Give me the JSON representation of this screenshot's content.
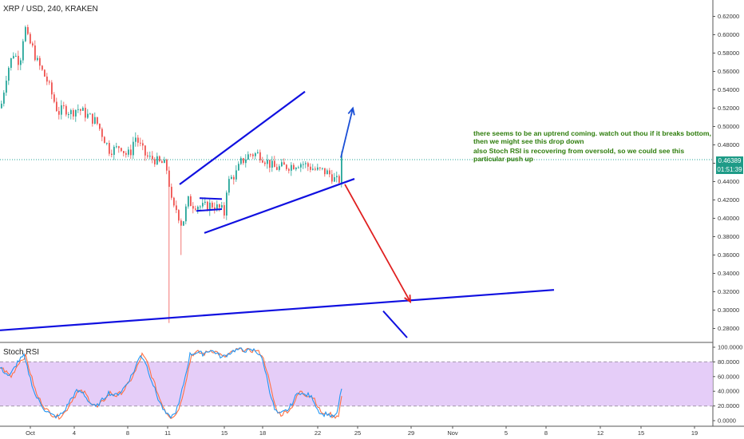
{
  "header": {
    "symbol_title": "XRP / USD, 240, KRAKEN"
  },
  "indicator": {
    "name": "Stoch RSI"
  },
  "last_price": {
    "value": "0.46389",
    "countdown": "01:51:39",
    "color": "#1e9b87"
  },
  "annotations": {
    "note_1": "there seems to be an uptrend coming. watch out thou if it breaks bottom, then we might see this drop down",
    "note_2": "also Stoch RSI is recovering from oversold, so we could see this particular push up"
  },
  "colors": {
    "up": "#26a69a",
    "down": "#ef5350",
    "trendline": "#1010e0",
    "up_arrow": "#1a4fd6",
    "down_arrow": "#e02020",
    "stoch_k": "#2196f3",
    "stoch_d": "#ff7043",
    "stoch_band": "#e1c4f7"
  },
  "chart_data": {
    "type": "candlestick",
    "price_axis": {
      "min": 0.27,
      "max": 0.63,
      "ticks": [
        "0.62000",
        "0.60000",
        "0.58000",
        "0.56000",
        "0.54000",
        "0.52000",
        "0.50000",
        "0.48000",
        "0.46000",
        "0.44000",
        "0.42000",
        "0.40000",
        "0.38000",
        "0.36000",
        "0.34000",
        "0.32000",
        "0.30000",
        "0.28000"
      ]
    },
    "time_axis": {
      "labels": [
        "Oct",
        "4",
        "8",
        "11",
        "15",
        "18",
        "22",
        "25",
        "29",
        "Nov",
        "5",
        "8",
        "12",
        "15",
        "19"
      ]
    },
    "stoch_axis": {
      "min": 0,
      "max": 100,
      "ticks": [
        "100.0000",
        "80.0000",
        "60.0000",
        "40.0000",
        "20.0000",
        "0.0000"
      ],
      "band": [
        20,
        80
      ]
    },
    "price_anchors": [
      [
        0,
        0.52
      ],
      [
        8,
        0.56
      ],
      [
        16,
        0.58
      ],
      [
        24,
        0.57
      ],
      [
        30,
        0.61
      ],
      [
        34,
        0.595
      ],
      [
        40,
        0.585
      ],
      [
        46,
        0.57
      ],
      [
        52,
        0.56
      ],
      [
        58,
        0.55
      ],
      [
        64,
        0.535
      ],
      [
        72,
        0.515
      ],
      [
        80,
        0.52
      ],
      [
        88,
        0.515
      ],
      [
        96,
        0.52
      ],
      [
        104,
        0.515
      ],
      [
        112,
        0.51
      ],
      [
        120,
        0.505
      ],
      [
        128,
        0.49
      ],
      [
        136,
        0.475
      ],
      [
        144,
        0.475
      ],
      [
        150,
        0.48
      ],
      [
        156,
        0.47
      ],
      [
        162,
        0.47
      ],
      [
        168,
        0.49
      ],
      [
        174,
        0.48
      ],
      [
        180,
        0.47
      ],
      [
        186,
        0.465
      ],
      [
        192,
        0.465
      ],
      [
        198,
        0.46
      ],
      [
        204,
        0.46
      ],
      [
        210,
        0.45
      ],
      [
        212,
        0.425
      ],
      [
        216,
        0.41
      ],
      [
        220,
        0.41
      ],
      [
        226,
        0.395
      ],
      [
        230,
        0.4
      ],
      [
        234,
        0.42
      ],
      [
        240,
        0.415
      ],
      [
        246,
        0.415
      ],
      [
        252,
        0.412
      ],
      [
        258,
        0.413
      ],
      [
        264,
        0.415
      ],
      [
        270,
        0.412
      ],
      [
        276,
        0.41
      ],
      [
        280,
        0.405
      ],
      [
        282,
        0.43
      ],
      [
        286,
        0.44
      ],
      [
        290,
        0.445
      ],
      [
        296,
        0.45
      ],
      [
        300,
        0.46
      ],
      [
        306,
        0.465
      ],
      [
        312,
        0.47
      ],
      [
        318,
        0.47
      ],
      [
        324,
        0.47
      ],
      [
        330,
        0.465
      ],
      [
        336,
        0.46
      ],
      [
        342,
        0.455
      ],
      [
        348,
        0.455
      ],
      [
        354,
        0.456
      ],
      [
        360,
        0.457
      ],
      [
        366,
        0.458
      ],
      [
        372,
        0.46
      ],
      [
        378,
        0.46
      ],
      [
        384,
        0.457
      ],
      [
        390,
        0.455
      ],
      [
        396,
        0.452
      ],
      [
        402,
        0.452
      ],
      [
        408,
        0.45
      ],
      [
        414,
        0.447
      ],
      [
        420,
        0.44
      ],
      [
        424,
        0.442
      ],
      [
        426,
        0.464
      ]
    ],
    "stoch_rsi_anchors": [
      [
        0,
        72
      ],
      [
        12,
        60
      ],
      [
        22,
        80
      ],
      [
        30,
        88
      ],
      [
        36,
        65
      ],
      [
        44,
        35
      ],
      [
        50,
        25
      ],
      [
        56,
        15
      ],
      [
        64,
        8
      ],
      [
        72,
        5
      ],
      [
        80,
        12
      ],
      [
        88,
        28
      ],
      [
        96,
        40
      ],
      [
        104,
        38
      ],
      [
        112,
        25
      ],
      [
        120,
        18
      ],
      [
        128,
        28
      ],
      [
        136,
        38
      ],
      [
        144,
        34
      ],
      [
        152,
        40
      ],
      [
        160,
        52
      ],
      [
        168,
        68
      ],
      [
        176,
        90
      ],
      [
        182,
        80
      ],
      [
        190,
        55
      ],
      [
        198,
        30
      ],
      [
        206,
        12
      ],
      [
        212,
        5
      ],
      [
        218,
        8
      ],
      [
        224,
        22
      ],
      [
        232,
        60
      ],
      [
        238,
        90
      ],
      [
        246,
        93
      ],
      [
        254,
        91
      ],
      [
        262,
        96
      ],
      [
        270,
        93
      ],
      [
        278,
        86
      ],
      [
        286,
        91
      ],
      [
        294,
        96
      ],
      [
        302,
        97
      ],
      [
        310,
        95
      ],
      [
        318,
        96
      ],
      [
        326,
        90
      ],
      [
        332,
        70
      ],
      [
        338,
        40
      ],
      [
        344,
        15
      ],
      [
        350,
        8
      ],
      [
        356,
        12
      ],
      [
        362,
        16
      ],
      [
        368,
        28
      ],
      [
        374,
        40
      ],
      [
        380,
        35
      ],
      [
        386,
        35
      ],
      [
        392,
        30
      ],
      [
        398,
        15
      ],
      [
        404,
        8
      ],
      [
        410,
        10
      ],
      [
        416,
        5
      ],
      [
        422,
        8
      ],
      [
        428,
        45
      ]
    ],
    "drawings": {
      "channel_upper": {
        "from": [
          225,
          0.437
        ],
        "to": [
          382,
          0.538
        ]
      },
      "channel_lower": {
        "from": [
          256,
          0.384
        ],
        "to": [
          444,
          0.443
        ]
      },
      "flag_top": {
        "from": [
          250,
          0.422
        ],
        "to": [
          278,
          0.421
        ]
      },
      "flag_bottom": {
        "from": [
          246,
          0.408
        ],
        "to": [
          278,
          0.41
        ]
      },
      "long_support": {
        "from": [
          0,
          0.278
        ],
        "to": [
          694,
          0.322
        ]
      },
      "small_line": {
        "from": [
          480,
          0.299
        ],
        "to": [
          510,
          0.27
        ]
      },
      "up_arrow": {
        "from": [
          427,
          0.466
        ],
        "to": [
          442,
          0.52
        ]
      },
      "down_arrow": {
        "from": [
          432,
          0.437
        ],
        "to": [
          514,
          0.309
        ]
      }
    }
  }
}
